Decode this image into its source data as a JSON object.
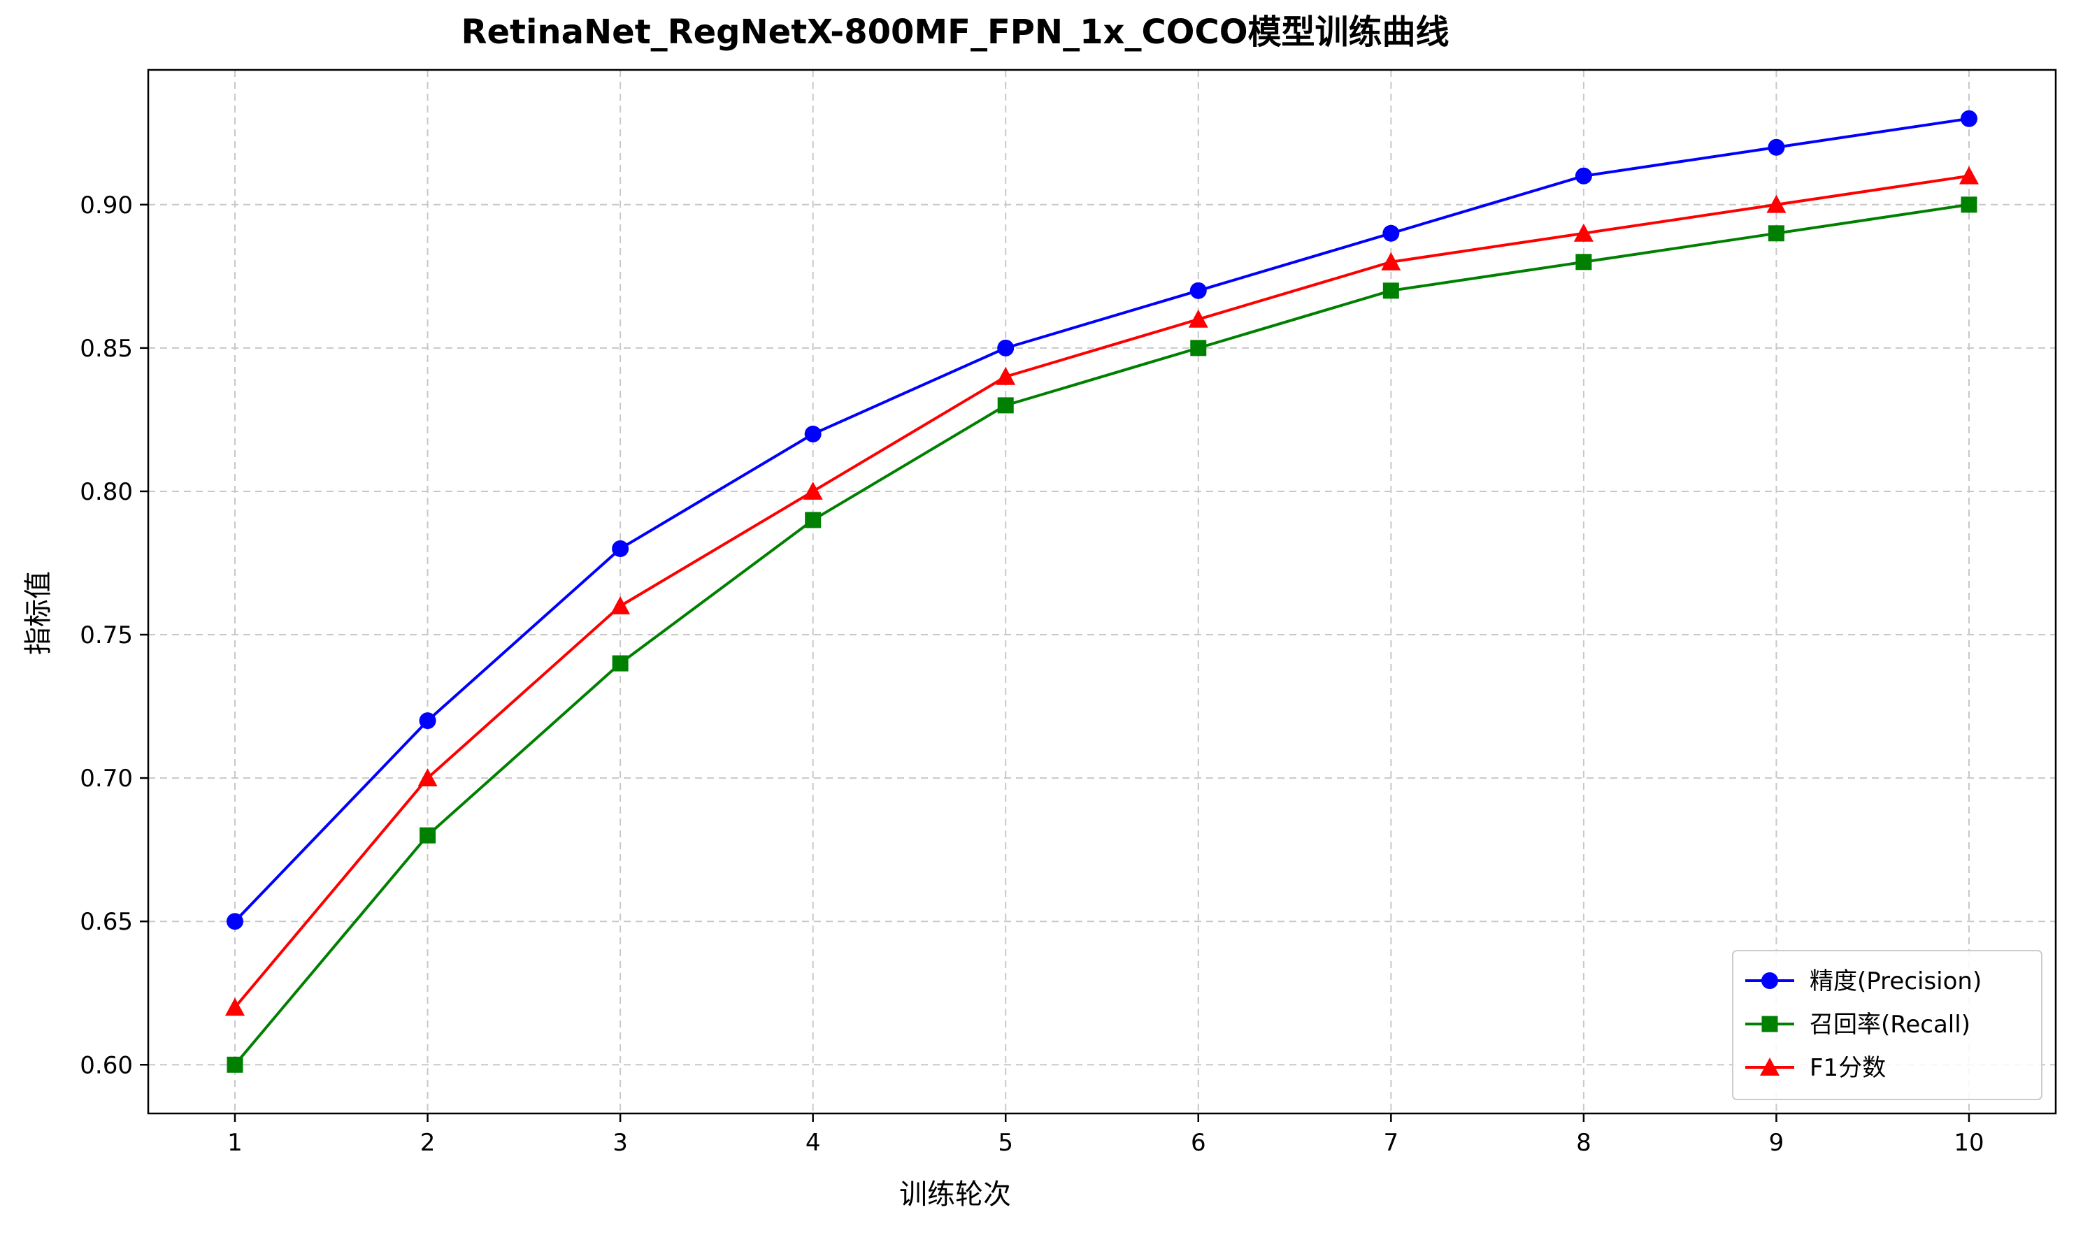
{
  "chart_data": {
    "type": "line",
    "title": "RetinaNet_RegNetX-800MF_FPN_1x_COCO模型训练曲线",
    "xlabel": "训练轮次",
    "ylabel": "指标值",
    "x": [
      1,
      2,
      3,
      4,
      5,
      6,
      7,
      8,
      9,
      10
    ],
    "xlim": [
      0.55,
      10.45
    ],
    "ylim": [
      0.583,
      0.947
    ],
    "yticks": [
      0.6,
      0.65,
      0.7,
      0.75,
      0.8,
      0.85,
      0.9
    ],
    "grid": true,
    "legend_position": "lower-right",
    "series": [
      {
        "name": "精度(Precision)",
        "color": "#0000ff",
        "marker": "circle",
        "values": [
          0.65,
          0.72,
          0.78,
          0.82,
          0.85,
          0.87,
          0.89,
          0.91,
          0.92,
          0.93
        ]
      },
      {
        "name": "召回率(Recall)",
        "color": "#008000",
        "marker": "square",
        "values": [
          0.6,
          0.68,
          0.74,
          0.79,
          0.83,
          0.85,
          0.87,
          0.88,
          0.89,
          0.9
        ]
      },
      {
        "name": "F1分数",
        "color": "#ff0000",
        "marker": "triangle",
        "values": [
          0.62,
          0.7,
          0.76,
          0.8,
          0.84,
          0.86,
          0.88,
          0.89,
          0.9,
          0.91
        ]
      }
    ]
  }
}
